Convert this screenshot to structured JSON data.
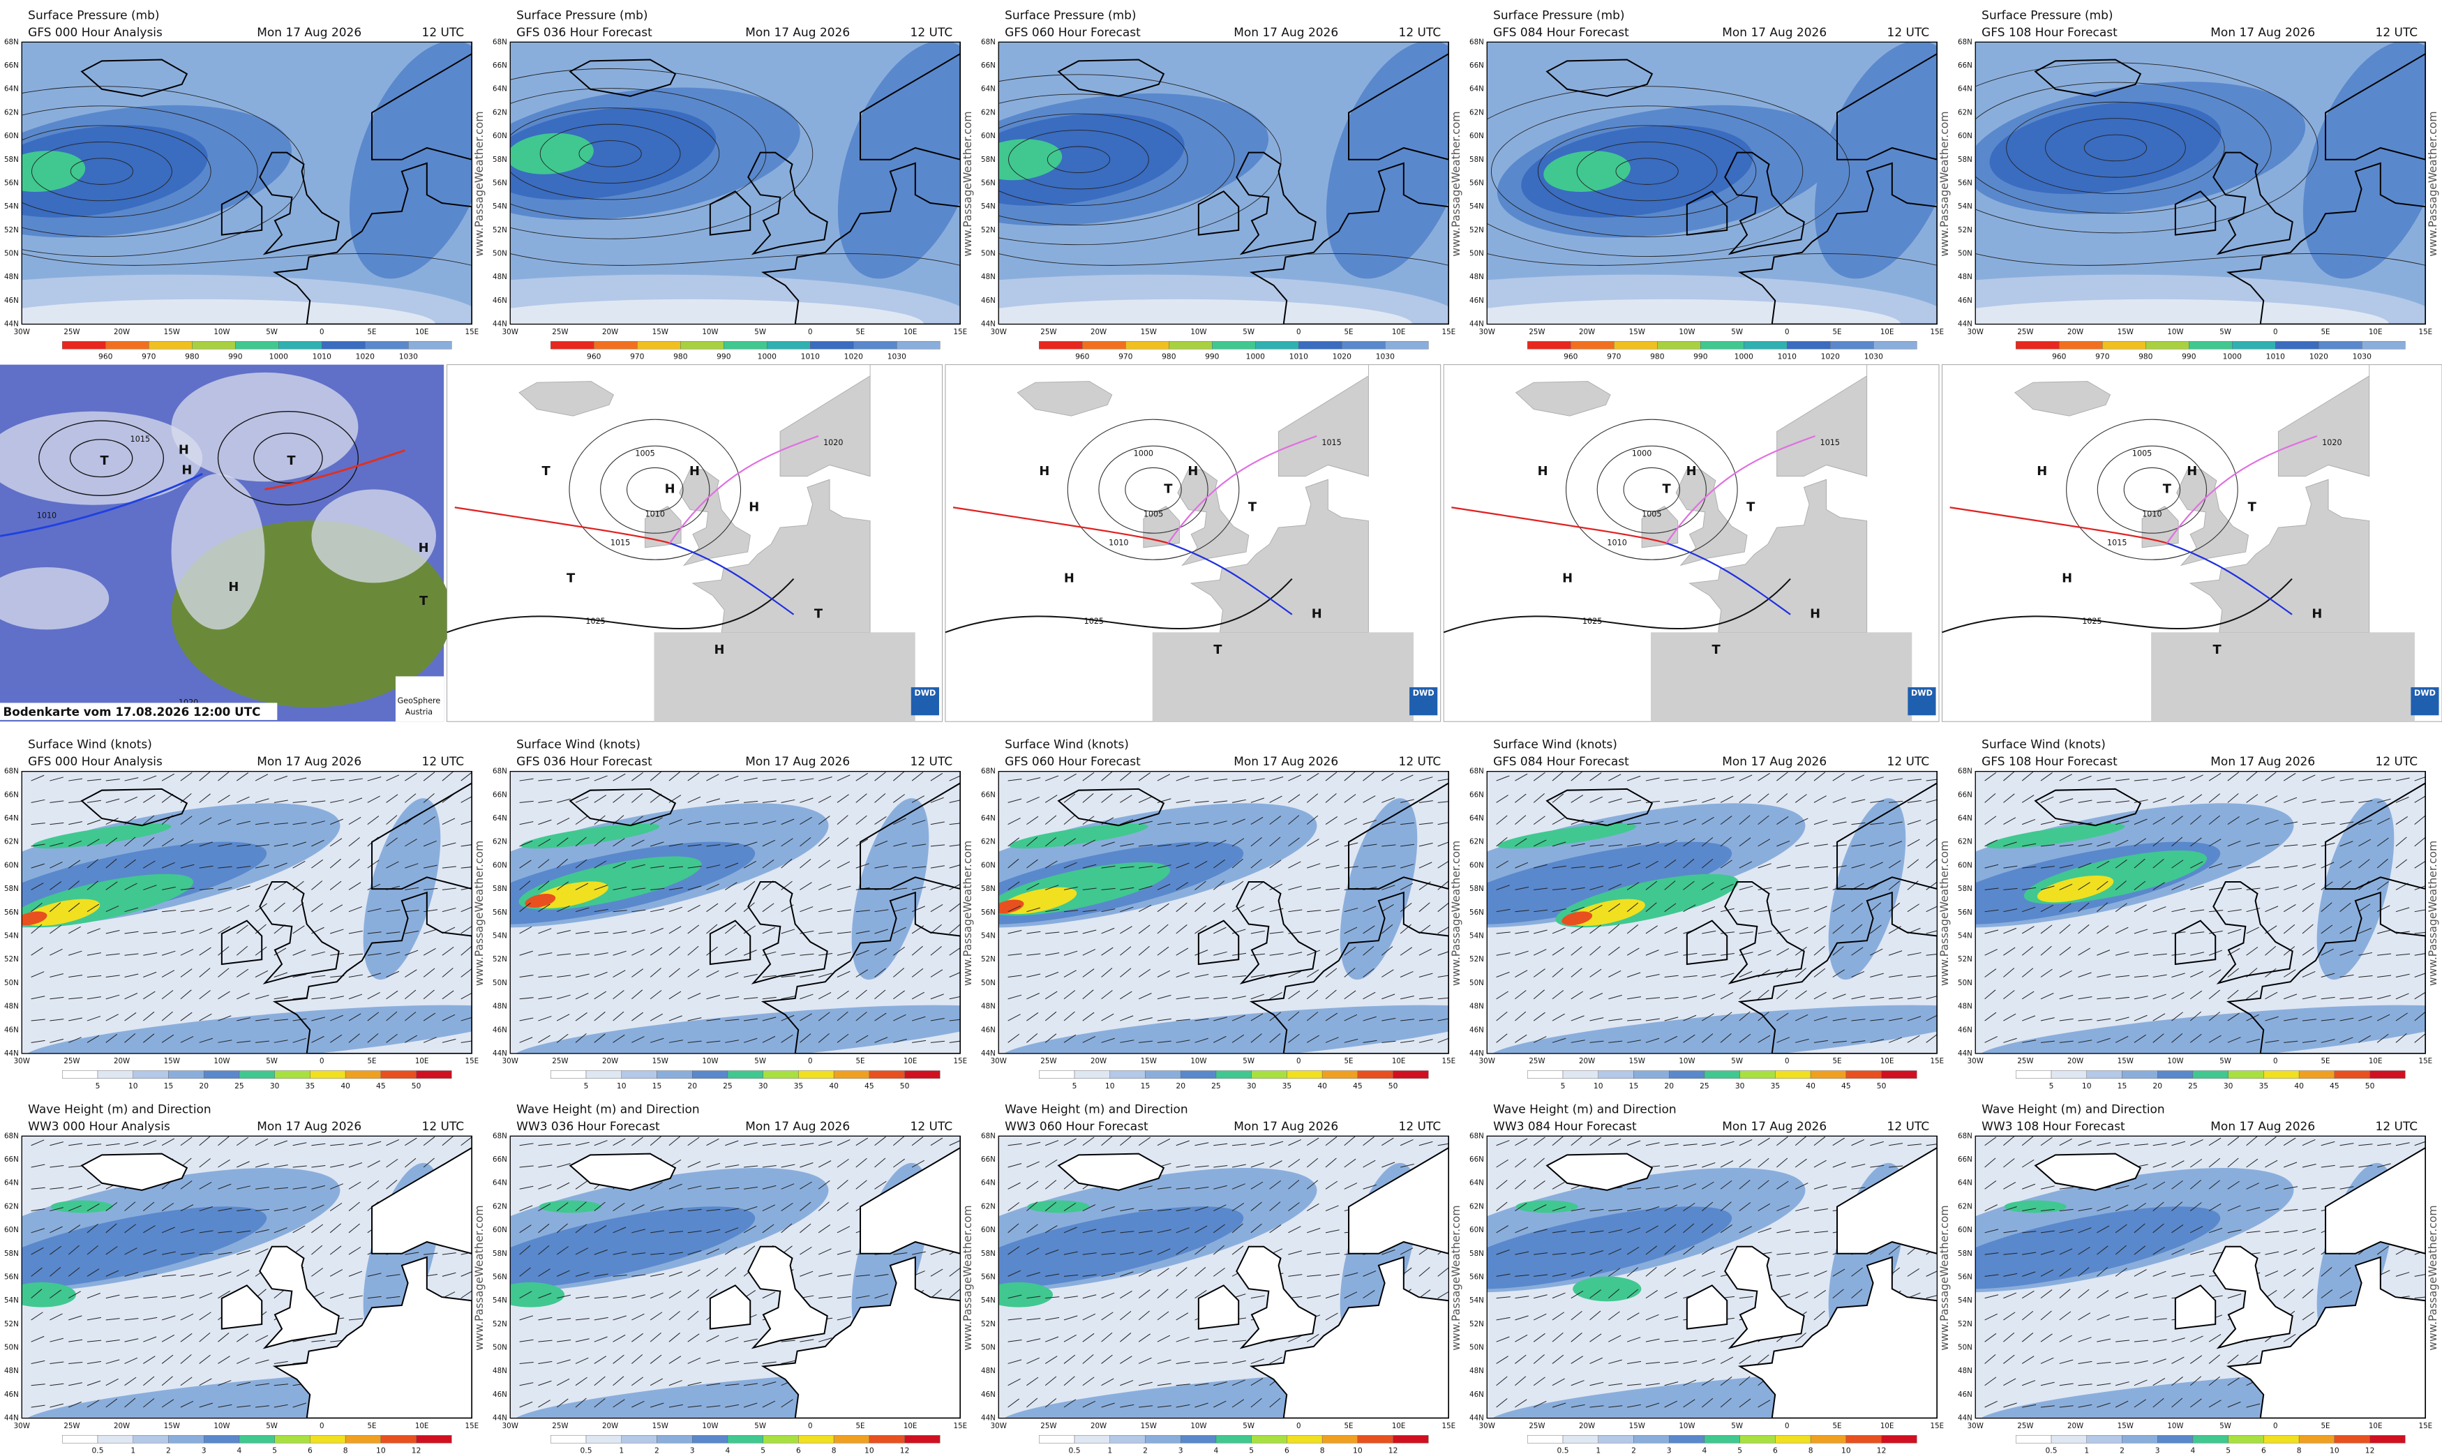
{
  "pressure": {
    "title": "Surface Pressure (mb)",
    "panels": [
      {
        "model": "GFS 000 Hour Analysis",
        "date": "Mon 17 Aug 2026",
        "time": "12 UTC"
      },
      {
        "model": "GFS 036 Hour Forecast",
        "date": "Mon 17 Aug 2026",
        "time": "12 UTC"
      },
      {
        "model": "GFS 060 Hour Forecast",
        "date": "Mon 17 Aug 2026",
        "time": "12 UTC"
      },
      {
        "model": "GFS 084 Hour Forecast",
        "date": "Mon 17 Aug 2026",
        "time": "12 UTC"
      },
      {
        "model": "GFS 108 Hour Forecast",
        "date": "Mon 17 Aug 2026",
        "time": "12 UTC"
      }
    ],
    "colorbar": [
      "960",
      "970",
      "980",
      "990",
      "1000",
      "1010",
      "1020",
      "1030"
    ],
    "colors": [
      "#e8281e",
      "#f07020",
      "#f0c020",
      "#a8d040",
      "#40c890",
      "#30b0b0",
      "#3a6cc0",
      "#5a88cc",
      "#8aaedc",
      "#b4c8e8",
      "#dfe7f3"
    ]
  },
  "wind": {
    "title": "Surface Wind (knots)",
    "panels": [
      {
        "model": "GFS 000 Hour Analysis",
        "date": "Mon 17 Aug 2026",
        "time": "12 UTC"
      },
      {
        "model": "GFS 036 Hour Forecast",
        "date": "Mon 17 Aug 2026",
        "time": "12 UTC"
      },
      {
        "model": "GFS 060 Hour Forecast",
        "date": "Mon 17 Aug 2026",
        "time": "12 UTC"
      },
      {
        "model": "GFS 084 Hour Forecast",
        "date": "Mon 17 Aug 2026",
        "time": "12 UTC"
      },
      {
        "model": "GFS 108 Hour Forecast",
        "date": "Mon 17 Aug 2026",
        "time": "12 UTC"
      }
    ],
    "colorbar": [
      "5",
      "10",
      "15",
      "20",
      "25",
      "30",
      "35",
      "40",
      "45",
      "50"
    ],
    "colors": [
      "#ffffff",
      "#dfe7f3",
      "#b4c8e8",
      "#8aaedc",
      "#5a88cc",
      "#40c890",
      "#a8e040",
      "#f0e020",
      "#f0a020",
      "#e85020",
      "#d01020",
      "#c020c0"
    ]
  },
  "wave": {
    "title": "Wave Height (m) and Direction",
    "panels": [
      {
        "model": "WW3 000 Hour Analysis",
        "date": "Mon 17 Aug 2026",
        "time": "12 UTC"
      },
      {
        "model": "WW3 036 Hour Forecast",
        "date": "Mon 17 Aug 2026",
        "time": "12 UTC"
      },
      {
        "model": "WW3 060 Hour Forecast",
        "date": "Mon 17 Aug 2026",
        "time": "12 UTC"
      },
      {
        "model": "WW3 084 Hour Forecast",
        "date": "Mon 17 Aug 2026",
        "time": "12 UTC"
      },
      {
        "model": "WW3 108 Hour Forecast",
        "date": "Mon 17 Aug 2026",
        "time": "12 UTC"
      }
    ],
    "colorbar": [
      "0.5",
      "1",
      "2",
      "3",
      "4",
      "5",
      "6",
      "8",
      "10",
      "12"
    ],
    "colors": [
      "#ffffff",
      "#dfe7f3",
      "#b4c8e8",
      "#8aaedc",
      "#5a88cc",
      "#40c890",
      "#a8e040",
      "#f0e020",
      "#f0a020",
      "#e85020",
      "#d01020",
      "#c020c0"
    ]
  },
  "lat_labels": [
    "68N",
    "66N",
    "64N",
    "62N",
    "60N",
    "58N",
    "56N",
    "54N",
    "52N",
    "50N",
    "48N",
    "46N",
    "44N"
  ],
  "lon_labels": [
    "30W",
    "25W",
    "20W",
    "15W",
    "10W",
    "5W",
    "0",
    "5E",
    "10E",
    "15E"
  ],
  "watermark": "www.PassageWeather.com",
  "analysis": {
    "caption": "Bodenkarte vom 17.08.2026 12:00 UTC",
    "credit": [
      "GeoSphere",
      "Austria"
    ],
    "logo": "DWD",
    "satellite_labels": [
      "T",
      "H",
      "T",
      "H",
      "H",
      "T",
      "H",
      "1020",
      "1015",
      "1010"
    ],
    "charts": [
      {
        "labels": [
          "H",
          "H",
          "T",
          "H",
          "T",
          "H",
          "T",
          "1005",
          "1010",
          "1015",
          "1020",
          "1025"
        ]
      },
      {
        "labels": [
          "H",
          "T",
          "H",
          "T",
          "H",
          "T",
          "H",
          "1000",
          "1005",
          "1010",
          "1015",
          "1025"
        ]
      },
      {
        "labels": [
          "H",
          "T",
          "H",
          "T",
          "H",
          "T",
          "H",
          "1000",
          "1005",
          "1010",
          "1015",
          "1025"
        ]
      },
      {
        "labels": [
          "H",
          "T",
          "H",
          "T",
          "H",
          "T",
          "H",
          "1005",
          "1010",
          "1015",
          "1020",
          "1025"
        ]
      }
    ]
  }
}
